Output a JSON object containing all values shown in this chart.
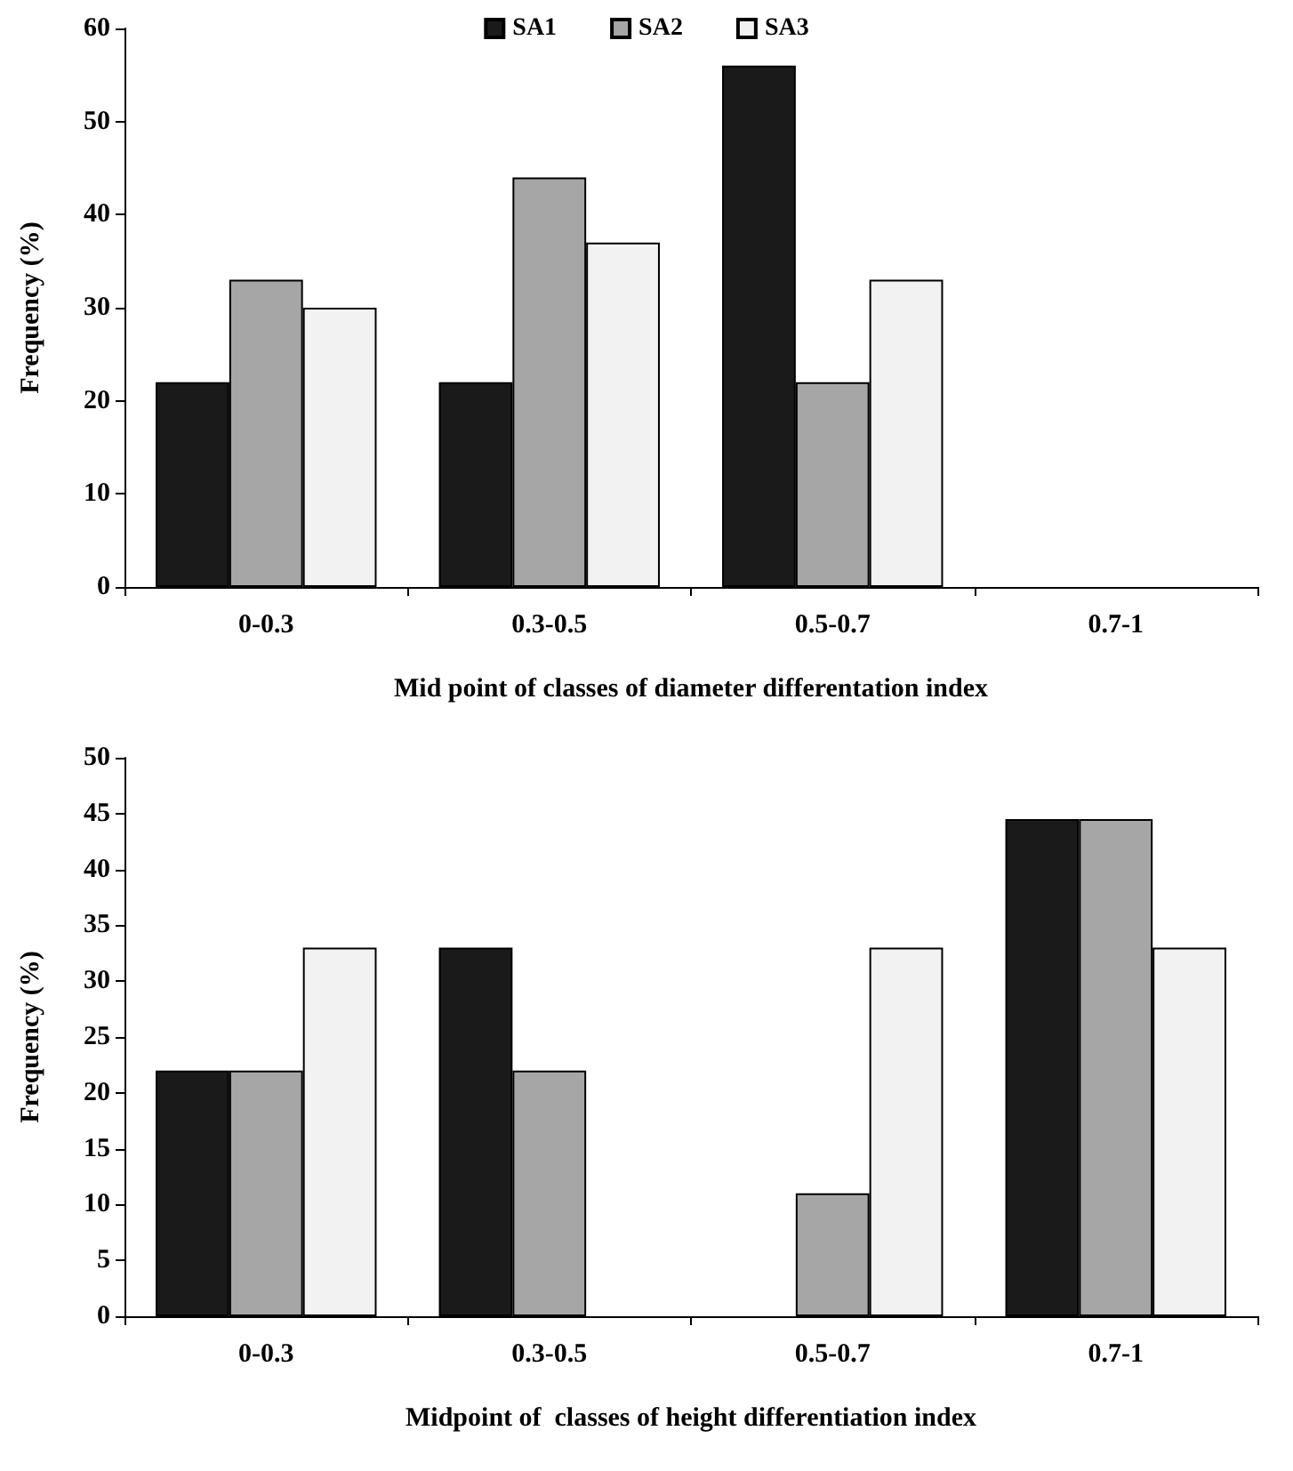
{
  "chart_data": [
    {
      "type": "bar",
      "xlabel": "Mid point of classes of diameter differentation index",
      "ylabel": "Frequency (%)",
      "categories": [
        "0-0.3",
        "0.3-0.5",
        "0.5-0.7",
        "0.7-1"
      ],
      "ylim": [
        0,
        60
      ],
      "yticks": [
        0,
        10,
        20,
        30,
        40,
        50,
        60
      ],
      "legend": "top",
      "series": [
        {
          "name": "SA1",
          "color": "#1a1a1a",
          "values": [
            22,
            22,
            56,
            0
          ]
        },
        {
          "name": "SA2",
          "color": "#a6a6a6",
          "values": [
            33,
            44,
            22,
            0
          ]
        },
        {
          "name": "SA3",
          "color": "#f2f2f2",
          "values": [
            30,
            37,
            33,
            0
          ]
        }
      ]
    },
    {
      "type": "bar",
      "xlabel": "Midpoint of  classes of height differentiation index",
      "ylabel": "Frequency (%)",
      "categories": [
        "0-0.3",
        "0.3-0.5",
        "0.5-0.7",
        "0.7-1"
      ],
      "ylim": [
        0,
        50
      ],
      "yticks": [
        0,
        5,
        10,
        15,
        20,
        25,
        30,
        35,
        40,
        45,
        50
      ],
      "series": [
        {
          "color": "#1a1a1a",
          "values": [
            22,
            33,
            0,
            44.5
          ]
        },
        {
          "color": "#a6a6a6",
          "values": [
            22,
            22,
            11,
            44.5
          ]
        },
        {
          "color": "#f2f2f2",
          "values": [
            33,
            0,
            33,
            33
          ]
        }
      ]
    }
  ]
}
